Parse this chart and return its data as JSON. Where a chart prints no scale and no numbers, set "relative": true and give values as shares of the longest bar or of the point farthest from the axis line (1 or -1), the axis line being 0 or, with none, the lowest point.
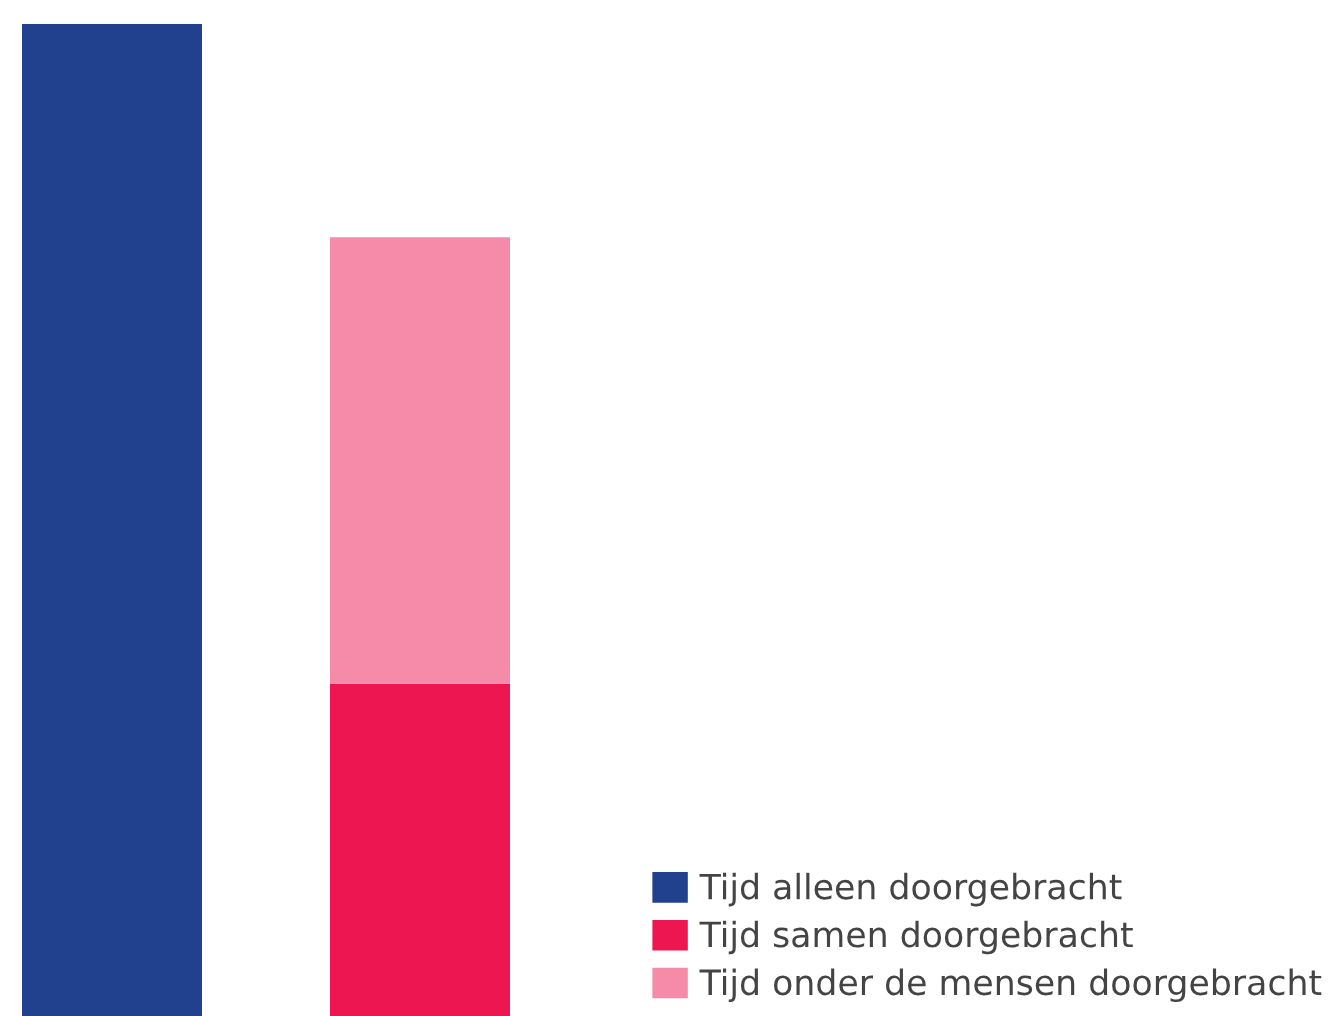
{
  "chart_data": {
    "type": "bar",
    "relative": true,
    "stacked": true,
    "categories": [
      null,
      null
    ],
    "series": [
      {
        "name": "Tijd alleen doorgebracht",
        "color": "#21418f",
        "values": [
          1,
          null
        ]
      },
      {
        "name": "Tijd samen doorgebracht",
        "color": "#ee1650",
        "values": [
          null,
          0.335
        ]
      },
      {
        "name": "Tijd onder de mensen doorgebracht",
        "color": "#f58aa9",
        "values": [
          null,
          0.45
        ]
      }
    ],
    "legend": "bottom right",
    "grid": false
  }
}
